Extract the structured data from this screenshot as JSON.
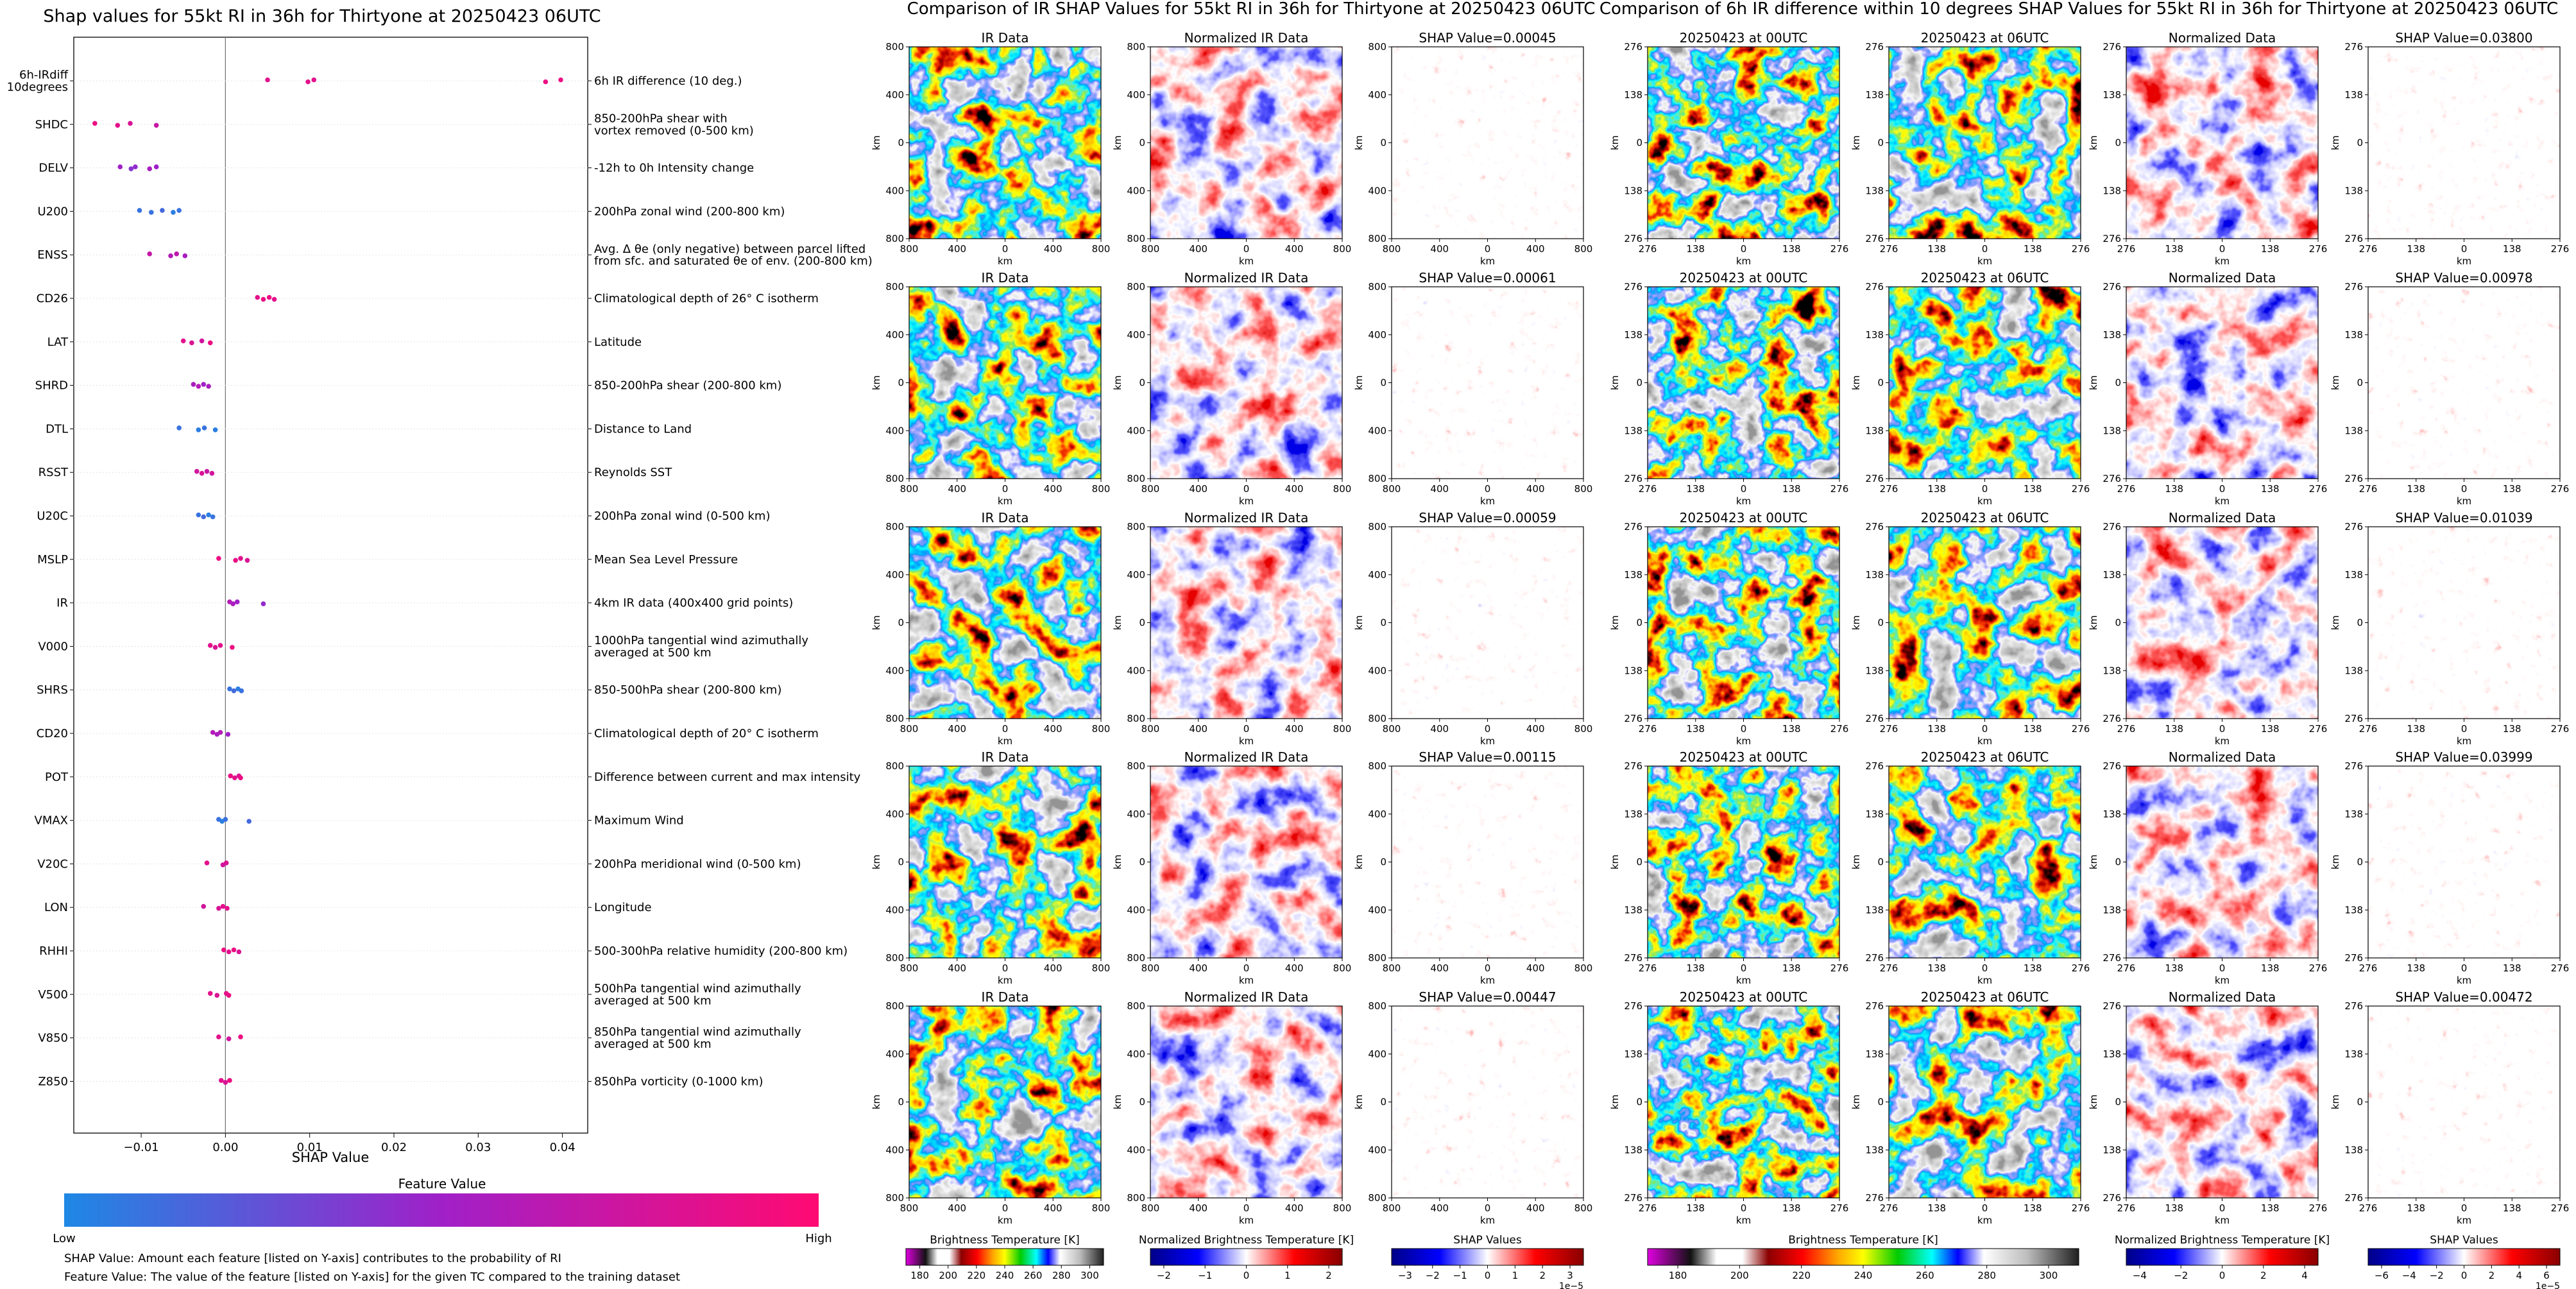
{
  "palette": {
    "low": "#1e88e5",
    "mid": "#a020c8",
    "high": "#ff0a72",
    "ir_stops": [
      "#e000e0",
      "#111111",
      "#ffffff",
      "#ffffff",
      "#8b0000",
      "#ff0000",
      "#ffa500",
      "#ffff00",
      "#00cc00",
      "#00ffff",
      "#0000ff",
      "#ffffff",
      "#bdbdbd",
      "#202020"
    ],
    "diverging": [
      "#000088",
      "#0000ff",
      "#ffffff",
      "#ff0000",
      "#880000"
    ]
  },
  "left_panel": {
    "title": "Shap values for 55kt RI in 36h for Thirtyone at 20250423 06UTC",
    "xlabel": "SHAP Value",
    "colorbar_title": "Feature Value",
    "low_label": "Low",
    "high_label": "High",
    "note1": "SHAP Value: Amount each feature [listed on Y-axis] contributes to the probability of RI",
    "note2": "Feature Value: The value of the feature [listed on Y-axis] for the given TC compared to the training dataset"
  },
  "chart_data": [
    {
      "type": "scatter",
      "title": "Shap values for 55kt RI in 36h for Thirtyone at 20250423 06UTC",
      "xlabel": "SHAP Value",
      "xlim": [
        -0.018,
        0.043
      ],
      "xticks": [
        "−0.01",
        "0.00",
        "0.01",
        "0.02",
        "0.03",
        "0.04"
      ],
      "xtick_values": [
        -0.01,
        0.0,
        0.01,
        0.02,
        0.03,
        0.04
      ],
      "features": [
        {
          "name": "6h-IRdiff\n10degrees",
          "desc": "6h IR difference (10 deg.)",
          "points": [
            [
              0.005,
              0.85
            ],
            [
              0.0098,
              0.85
            ],
            [
              0.0105,
              0.85
            ],
            [
              0.038,
              0.9
            ],
            [
              0.0398,
              0.9
            ]
          ]
        },
        {
          "name": "SHDC",
          "desc": "850-200hPa shear with\nvortex removed (0-500 km)",
          "points": [
            [
              -0.0155,
              0.9
            ],
            [
              -0.0128,
              0.85
            ],
            [
              -0.0113,
              0.8
            ],
            [
              -0.0082,
              0.7
            ]
          ]
        },
        {
          "name": "DELV",
          "desc": "-12h to 0h Intensity change",
          "points": [
            [
              -0.0125,
              0.5
            ],
            [
              -0.0112,
              0.4
            ],
            [
              -0.0107,
              0.45
            ],
            [
              -0.009,
              0.55
            ],
            [
              -0.0082,
              0.5
            ]
          ]
        },
        {
          "name": "U200",
          "desc": "200hPa zonal wind (200-800 km)",
          "points": [
            [
              -0.0102,
              0.1
            ],
            [
              -0.0088,
              0.1
            ],
            [
              -0.0075,
              0.15
            ],
            [
              -0.0062,
              0.05
            ],
            [
              -0.0055,
              0.1
            ]
          ]
        },
        {
          "name": "ENSS",
          "desc": "Avg. Δ θe (only negative) between parcel lifted\nfrom sfc. and saturated θe of env. (200-800 km)",
          "points": [
            [
              -0.009,
              0.7
            ],
            [
              -0.0065,
              0.6
            ],
            [
              -0.0058,
              0.65
            ],
            [
              -0.0048,
              0.55
            ]
          ]
        },
        {
          "name": "CD26",
          "desc": "Climatological depth of 26° C isotherm",
          "points": [
            [
              0.0038,
              0.85
            ],
            [
              0.0045,
              0.9
            ],
            [
              0.0052,
              0.9
            ],
            [
              0.0058,
              0.85
            ]
          ]
        },
        {
          "name": "LAT",
          "desc": "Latitude",
          "points": [
            [
              -0.005,
              0.85
            ],
            [
              -0.004,
              0.8
            ],
            [
              -0.0028,
              0.75
            ],
            [
              -0.0018,
              0.9
            ]
          ]
        },
        {
          "name": "SHRD",
          "desc": "850-200hPa shear (200-800 km)",
          "points": [
            [
              -0.0038,
              0.55
            ],
            [
              -0.0032,
              0.6
            ],
            [
              -0.0026,
              0.5
            ],
            [
              -0.002,
              0.55
            ]
          ]
        },
        {
          "name": "DTL",
          "desc": "Distance to Land",
          "points": [
            [
              -0.0055,
              0.1
            ],
            [
              -0.0032,
              0.05
            ],
            [
              -0.0025,
              0.1
            ],
            [
              -0.0012,
              0.05
            ]
          ]
        },
        {
          "name": "RSST",
          "desc": "Reynolds SST",
          "points": [
            [
              -0.0034,
              0.75
            ],
            [
              -0.0028,
              0.8
            ],
            [
              -0.0022,
              0.7
            ],
            [
              -0.0016,
              0.75
            ]
          ]
        },
        {
          "name": "U20C",
          "desc": "200hPa zonal wind (0-500 km)",
          "points": [
            [
              -0.0032,
              0.1
            ],
            [
              -0.0026,
              0.15
            ],
            [
              -0.002,
              0.05
            ],
            [
              -0.0015,
              0.1
            ]
          ]
        },
        {
          "name": "MSLP",
          "desc": "Mean Sea Level Pressure",
          "points": [
            [
              -0.0008,
              0.9
            ],
            [
              0.0012,
              0.9
            ],
            [
              0.0018,
              0.85
            ],
            [
              0.0026,
              0.8
            ]
          ]
        },
        {
          "name": "IR",
          "desc": "4km IR data (400x400 grid points)",
          "points": [
            [
              0.0005,
              0.6
            ],
            [
              0.0009,
              0.55
            ],
            [
              0.0014,
              0.5
            ],
            [
              0.0045,
              0.45
            ]
          ]
        },
        {
          "name": "V000",
          "desc": "1000hPa tangential wind azimuthally\naveraged at 500 km",
          "points": [
            [
              -0.0018,
              0.85
            ],
            [
              -0.0012,
              0.8
            ],
            [
              -0.0006,
              0.85
            ],
            [
              0.0008,
              0.9
            ]
          ]
        },
        {
          "name": "SHRS",
          "desc": "850-500hPa shear (200-800 km)",
          "points": [
            [
              0.0005,
              0.1
            ],
            [
              0.001,
              0.15
            ],
            [
              0.0015,
              0.05
            ],
            [
              0.0019,
              0.1
            ]
          ]
        },
        {
          "name": "CD20",
          "desc": "Climatological depth of 20° C isotherm",
          "points": [
            [
              -0.0015,
              0.6
            ],
            [
              -0.001,
              0.55
            ],
            [
              -0.0006,
              0.6
            ],
            [
              0.0003,
              0.5
            ]
          ]
        },
        {
          "name": "POT",
          "desc": "Difference between current and max intensity",
          "points": [
            [
              0.0006,
              0.9
            ],
            [
              0.0011,
              0.85
            ],
            [
              0.0016,
              0.8
            ],
            [
              0.0018,
              0.9
            ]
          ]
        },
        {
          "name": "VMAX",
          "desc": "Maximum Wind",
          "points": [
            [
              -0.0008,
              0.1
            ],
            [
              -0.0004,
              0.05
            ],
            [
              0.0,
              0.1
            ],
            [
              0.0028,
              0.15
            ]
          ]
        },
        {
          "name": "V20C",
          "desc": "200hPa meridional wind (0-500 km)",
          "points": [
            [
              -0.0022,
              0.85
            ],
            [
              -0.0003,
              0.75
            ],
            [
              0.0001,
              0.8
            ]
          ]
        },
        {
          "name": "LON",
          "desc": "Longitude",
          "points": [
            [
              -0.0026,
              0.75
            ],
            [
              -0.0008,
              0.8
            ],
            [
              -0.0003,
              0.85
            ],
            [
              0.0002,
              0.85
            ]
          ]
        },
        {
          "name": "RHHI",
          "desc": "500-300hPa relative humidity (200-800 km)",
          "points": [
            [
              -0.0002,
              0.9
            ],
            [
              0.0004,
              0.85
            ],
            [
              0.001,
              0.9
            ],
            [
              0.0016,
              0.8
            ]
          ]
        },
        {
          "name": "V500",
          "desc": "500hPa tangential wind azimuthally\naveraged at 500 km",
          "points": [
            [
              -0.0018,
              0.85
            ],
            [
              -0.001,
              0.8
            ],
            [
              0.0001,
              0.85
            ],
            [
              0.0004,
              0.9
            ]
          ]
        },
        {
          "name": "V850",
          "desc": "850hPa tangential wind azimuthally\naveraged at 500 km",
          "points": [
            [
              -0.0008,
              0.85
            ],
            [
              0.0004,
              0.75
            ],
            [
              0.0018,
              0.9
            ]
          ]
        },
        {
          "name": "Z850",
          "desc": "850hPa vorticity (0-1000 km)",
          "points": [
            [
              -0.0005,
              0.85
            ],
            [
              0.0,
              0.8
            ],
            [
              0.0005,
              0.9
            ]
          ]
        }
      ]
    },
    {
      "type": "heatmap",
      "title": "Comparison of IR SHAP Values for 55kt RI in 36h for Thirtyone at 20250423 06UTC",
      "axis_label": "km",
      "ticks": [
        "800",
        "400",
        "0",
        "400",
        "800"
      ],
      "panel_titles": [
        "IR Data",
        "Normalized IR Data"
      ],
      "shap_titles": [
        "SHAP Value=0.00045",
        "SHAP Value=0.00061",
        "SHAP Value=0.00059",
        "SHAP Value=0.00115",
        "SHAP Value=0.00447"
      ],
      "colorbars": [
        {
          "title": "Brightness Temperature [K]",
          "ticks": [
            "180",
            "200",
            "220",
            "240",
            "260",
            "280",
            "300"
          ]
        },
        {
          "title": "Normalized Brightness Temperature [K]",
          "ticks": [
            "−2",
            "−1",
            "0",
            "1",
            "2"
          ]
        },
        {
          "title": "SHAP Values",
          "ticks": [
            "−3",
            "−2",
            "−1",
            "0",
            "1",
            "2",
            "3"
          ],
          "exponent": "1e−5"
        }
      ]
    },
    {
      "type": "heatmap",
      "title": "Comparison of 6h IR difference within 10 degrees SHAP Values for 55kt RI in 36h for Thirtyone at 20250423 06UTC",
      "axis_label": "km",
      "ticks": [
        "276",
        "138",
        "0",
        "138",
        "276"
      ],
      "panel_titles": [
        "20250423 at 00UTC",
        "20250423 at 06UTC",
        "Normalized Data"
      ],
      "shap_titles": [
        "SHAP Value=0.03800",
        "SHAP Value=0.00978",
        "SHAP Value=0.01039",
        "SHAP Value=0.03999",
        "SHAP Value=0.00472"
      ],
      "colorbars": [
        {
          "title": "Brightness Temperature [K]",
          "ticks": [
            "180",
            "200",
            "220",
            "240",
            "260",
            "280",
            "300"
          ]
        },
        {
          "title": "Normalized Brightness Temperature [K]",
          "ticks": [
            "−4",
            "−2",
            "0",
            "2",
            "4"
          ]
        },
        {
          "title": "SHAP Values",
          "ticks": [
            "−6",
            "−4",
            "−2",
            "0",
            "2",
            "4",
            "6"
          ],
          "exponent": "1e−5"
        }
      ]
    }
  ]
}
